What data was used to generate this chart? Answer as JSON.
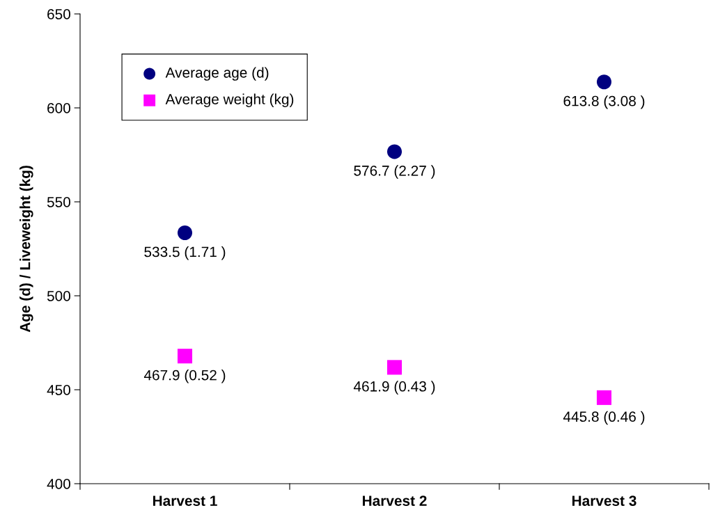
{
  "chart_data": {
    "type": "scatter",
    "ylabel": "Age (d) / Liveweight (kg)",
    "categories": [
      "Harvest 1",
      "Harvest 2",
      "Harvest 3"
    ],
    "series": [
      {
        "name": "Average age (d)",
        "color": "#000080",
        "marker": "circle",
        "values": [
          533.5,
          576.7,
          613.8
        ],
        "value_labels": [
          "533.5 (1.71 )",
          "576.7 (2.27 )",
          "613.8 (3.08 )"
        ]
      },
      {
        "name": "Average weight (kg)",
        "color": "#ff00ff",
        "marker": "square",
        "values": [
          467.9,
          461.9,
          445.8
        ],
        "value_labels": [
          "467.9 (0.52 )",
          "461.9 (0.43 )",
          "445.8 (0.46 )"
        ]
      }
    ],
    "ylim": [
      400,
      650
    ],
    "yticks": [
      400,
      450,
      500,
      550,
      600,
      650
    ],
    "grid": false,
    "legend": "top left"
  }
}
